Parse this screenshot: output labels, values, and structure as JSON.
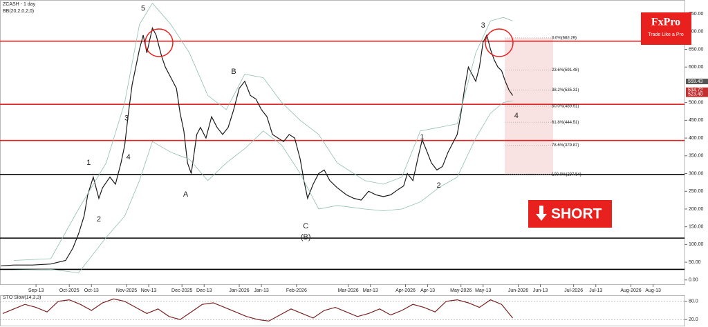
{
  "chart_data": [
    {
      "type": "line",
      "title": "ZCASH - 1 day",
      "subtitle": "BB(20,2,0,2,0)",
      "xlim": [
        -7.5,
        363
      ],
      "ylim": [
        -12,
        789
      ],
      "xticks": [
        {
          "value": 12,
          "label": "Sep-13"
        },
        {
          "value": 30,
          "label": "Oct-2025"
        },
        {
          "value": 42,
          "label": "Oct-13"
        },
        {
          "value": 61,
          "label": "Nov-2025"
        },
        {
          "value": 73,
          "label": "Nov-13"
        },
        {
          "value": 91,
          "label": "Dec-2025"
        },
        {
          "value": 103,
          "label": "Dec-13"
        },
        {
          "value": 122,
          "label": "Jan-2026"
        },
        {
          "value": 134,
          "label": "Jan-13"
        },
        {
          "value": 153,
          "label": "Feb-2026"
        },
        {
          "value": 181,
          "label": "Mar-2026"
        },
        {
          "value": 193,
          "label": "Mar-13"
        },
        {
          "value": 212,
          "label": "Apr-2026"
        },
        {
          "value": 224,
          "label": "Apr-13"
        },
        {
          "value": 242,
          "label": "May-2026"
        },
        {
          "value": 254,
          "label": "May-13"
        },
        {
          "value": 273,
          "label": "Jun-2026"
        },
        {
          "value": 285,
          "label": "Jun-13"
        },
        {
          "value": 303,
          "label": "Jul-2026"
        },
        {
          "value": 315,
          "label": "Jul-13"
        },
        {
          "value": 334,
          "label": "Aug-2026"
        },
        {
          "value": 346,
          "label": "Aug-13"
        }
      ],
      "yticks": [
        {
          "value": 0,
          "label": "0.00"
        },
        {
          "value": 50,
          "label": "50.00"
        },
        {
          "value": 100,
          "label": "100.00"
        },
        {
          "value": 150,
          "label": "150.00"
        },
        {
          "value": 200,
          "label": "200.00"
        },
        {
          "value": 250,
          "label": "250.00"
        },
        {
          "value": 300,
          "label": "300.00"
        },
        {
          "value": 350,
          "label": "350.00"
        },
        {
          "value": 400,
          "label": "400.00"
        },
        {
          "value": 450,
          "label": "450.00"
        },
        {
          "value": 500,
          "label": "500.00"
        },
        {
          "value": 600,
          "label": "600.00"
        },
        {
          "value": 650,
          "label": "650.00"
        },
        {
          "value": 700,
          "label": "700.00"
        },
        {
          "value": 750,
          "label": "750.00"
        }
      ],
      "series": [
        {
          "color": "#1a1a1a",
          "x": [
            -7,
            0,
            10,
            20,
            28,
            32,
            35,
            38,
            40,
            43,
            46,
            48,
            52,
            55,
            58,
            60,
            62,
            64,
            66,
            68,
            70,
            72,
            75,
            77,
            80,
            82,
            85,
            88,
            90,
            92,
            94,
            96,
            99,
            101,
            104,
            107,
            110,
            113,
            116,
            119,
            122,
            125,
            128,
            131,
            134,
            137,
            140,
            143,
            146,
            149,
            152,
            155,
            157,
            159,
            162,
            165,
            168,
            171,
            175,
            180,
            184,
            188,
            192,
            196,
            200,
            204,
            208,
            211,
            213,
            216,
            219,
            221,
            223,
            226,
            229,
            232,
            235,
            237,
            240,
            242,
            244,
            246,
            248,
            250,
            252,
            254,
            256,
            258,
            260,
            262,
            264,
            266,
            268,
            270
          ],
          "values": [
            40,
            42,
            42,
            45,
            55,
            90,
            130,
            180,
            240,
            290,
            230,
            260,
            290,
            270,
            330,
            380,
            470,
            550,
            600,
            650,
            690,
            640,
            710,
            690,
            630,
            600,
            570,
            540,
            470,
            420,
            330,
            300,
            410,
            430,
            400,
            460,
            430,
            410,
            430,
            480,
            540,
            560,
            520,
            510,
            480,
            460,
            410,
            400,
            390,
            410,
            400,
            340,
            280,
            230,
            270,
            300,
            310,
            280,
            260,
            240,
            230,
            225,
            250,
            240,
            235,
            240,
            255,
            265,
            300,
            280,
            350,
            395,
            370,
            330,
            310,
            320,
            360,
            380,
            410,
            470,
            540,
            600,
            580,
            560,
            600,
            670,
            690,
            650,
            620,
            600,
            590,
            560,
            535,
            520
          ]
        },
        {
          "color": "#8fbfb0",
          "x": [
            0,
            20,
            35,
            50,
            60,
            68,
            75,
            85,
            95,
            105,
            115,
            125,
            135,
            145,
            155,
            165,
            175,
            190,
            200,
            210,
            220,
            230,
            240,
            250,
            258,
            265,
            270
          ],
          "values": [
            55,
            60,
            200,
            330,
            500,
            720,
            780,
            720,
            640,
            520,
            480,
            580,
            570,
            500,
            450,
            410,
            330,
            280,
            270,
            290,
            420,
            430,
            440,
            640,
            730,
            740,
            730
          ]
        },
        {
          "color": "#8fbfb0",
          "x": [
            0,
            20,
            35,
            50,
            60,
            68,
            75,
            85,
            95,
            105,
            115,
            125,
            135,
            145,
            155,
            165,
            175,
            190,
            200,
            210,
            220,
            230,
            240,
            250,
            258,
            265,
            270
          ],
          "values": [
            28,
            30,
            20,
            120,
            180,
            280,
            390,
            360,
            340,
            280,
            330,
            370,
            420,
            380,
            300,
            200,
            210,
            200,
            195,
            200,
            220,
            260,
            290,
            400,
            470,
            500,
            505
          ]
        }
      ],
      "hlines": [
        {
          "value": 673,
          "color": "#e8201e"
        },
        {
          "value": 495,
          "color": "#e8201e"
        },
        {
          "value": 393,
          "color": "#e8201e"
        },
        {
          "value": 297,
          "color": "#000000"
        },
        {
          "value": 118,
          "color": "#000000"
        },
        {
          "value": 30,
          "color": "#000000"
        }
      ],
      "fib": [
        {
          "label": "0.0%(682.29)",
          "value": 682.29
        },
        {
          "label": "23.6%(591.48)",
          "value": 591.48
        },
        {
          "label": "38.2%(535.31)",
          "value": 535.31
        },
        {
          "label": "50.0%(489.91)",
          "value": 489.91
        },
        {
          "label": "61.8%(444.51)",
          "value": 444.51
        },
        {
          "label": "78.6%(379.87)",
          "value": 379.87
        },
        {
          "label": "100.0%(297.54)",
          "value": 297.54
        }
      ],
      "price_tags": [
        {
          "value": 559.43,
          "label": "559.43",
          "color": "#555555"
        },
        {
          "value": 534.72,
          "label": "534.72",
          "color": "#c03030"
        },
        {
          "value": 523.4,
          "label": "523.40",
          "color": "#c03030"
        }
      ],
      "annotations": [
        {
          "text": "5",
          "x": 70,
          "y": 765
        },
        {
          "text": "1",
          "x": 40.5,
          "y": 330
        },
        {
          "text": "2",
          "x": 46,
          "y": 171
        },
        {
          "text": "3",
          "x": 61,
          "y": 455
        },
        {
          "text": "4",
          "x": 62,
          "y": 346
        },
        {
          "text": "A",
          "x": 93,
          "y": 241
        },
        {
          "text": "B",
          "x": 119,
          "y": 587
        },
        {
          "text": "C",
          "x": 158,
          "y": 151
        },
        {
          "text": "(B)",
          "x": 158,
          "y": 120
        },
        {
          "text": "1",
          "x": 221,
          "y": 402
        },
        {
          "text": "2",
          "x": 230,
          "y": 266
        },
        {
          "text": "3",
          "x": 254,
          "y": 717
        },
        {
          "text": "4",
          "x": 272,
          "y": 462
        }
      ],
      "callout": "SHORT"
    },
    {
      "type": "line",
      "title": "STO Slow(14,3,3)",
      "xlim": [
        -7.5,
        363
      ],
      "ylim": [
        0,
        100
      ],
      "grid": true,
      "yticks": [
        {
          "value": 80,
          "label": "80.0"
        },
        {
          "value": 20,
          "label": "20.0"
        }
      ],
      "series": [
        {
          "color": "#7a2020",
          "x": [
            -6,
            0,
            6,
            12,
            18,
            24,
            30,
            36,
            42,
            48,
            54,
            60,
            66,
            72,
            78,
            84,
            90,
            96,
            102,
            108,
            114,
            120,
            126,
            132,
            138,
            144,
            150,
            156,
            162,
            168,
            174,
            180,
            186,
            192,
            198,
            204,
            210,
            216,
            222,
            228,
            234,
            240,
            246,
            252,
            258,
            264,
            270
          ],
          "values": [
            40,
            55,
            70,
            60,
            45,
            80,
            85,
            70,
            50,
            75,
            88,
            80,
            60,
            40,
            55,
            30,
            20,
            45,
            70,
            75,
            60,
            45,
            30,
            20,
            15,
            35,
            55,
            40,
            25,
            50,
            60,
            45,
            30,
            40,
            55,
            35,
            50,
            70,
            60,
            45,
            80,
            85,
            75,
            60,
            85,
            70,
            25
          ]
        }
      ]
    }
  ],
  "branding": {
    "name": "FxPro",
    "tagline": "Trade Like a Pro"
  }
}
